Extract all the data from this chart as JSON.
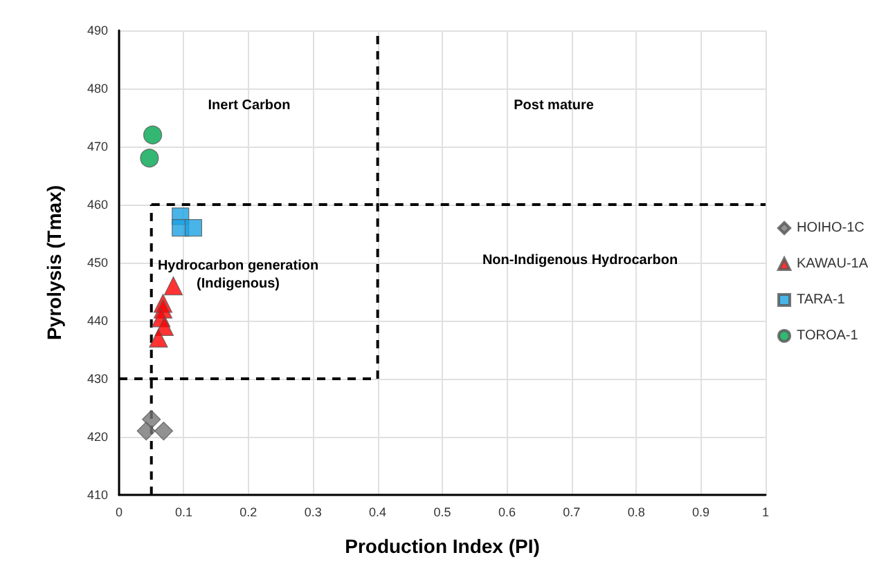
{
  "chart_data": {
    "type": "scatter",
    "xlabel": "Production Index (PI)",
    "ylabel": "Pyrolysis (Tmax)",
    "xlim": [
      0,
      1
    ],
    "xticks": [
      0,
      0.1,
      0.2,
      0.3,
      0.4,
      0.5,
      0.6,
      0.7,
      0.8,
      0.9,
      1
    ],
    "ylim": [
      410,
      490
    ],
    "yticks": [
      410,
      420,
      430,
      440,
      450,
      460,
      470,
      480,
      490
    ],
    "grid": true,
    "legend": "right",
    "series": [
      {
        "name": "HOIHO-1C",
        "color": "#767676",
        "marker": "diamond",
        "x": [
          0.05,
          0.042,
          0.069
        ],
        "values": [
          423,
          421,
          421
        ]
      },
      {
        "name": "KAWAU-1A",
        "color": "#ff0000",
        "marker": "triangle",
        "x": [
          0.084,
          0.068,
          0.068,
          0.065,
          0.07,
          0.061
        ],
        "values": [
          446,
          443,
          442,
          440.5,
          439,
          437
        ]
      },
      {
        "name": "TARA-1",
        "color": "#1ba1e2",
        "marker": "square",
        "x": [
          0.095,
          0.095,
          0.115
        ],
        "values": [
          458,
          456,
          456
        ]
      },
      {
        "name": "TOROA-1",
        "color": "#00a550",
        "marker": "circle",
        "x": [
          0.052,
          0.047
        ],
        "values": [
          472,
          468
        ]
      },
      {
        "type": "line",
        "color": "#000000",
        "line_style": "dashed",
        "marker": "none",
        "x": [
          0.05,
          0.05
        ],
        "values": [
          410,
          460
        ]
      },
      {
        "type": "line",
        "color": "#000000",
        "line_style": "dashed",
        "marker": "none",
        "x": [
          0,
          0.4
        ],
        "values": [
          430,
          430
        ]
      },
      {
        "type": "line",
        "color": "#000000",
        "line_style": "dashed",
        "marker": "none",
        "x": [
          0.4,
          0.4
        ],
        "values": [
          430,
          490
        ]
      },
      {
        "type": "line",
        "color": "#000000",
        "line_style": "dashed",
        "marker": "none",
        "x": [
          0.05,
          1
        ],
        "values": [
          460,
          460
        ]
      }
    ],
    "annotations": [
      "Inert Carbon",
      "Post mature",
      "Hydrocarbon generation\n(Indigenous)",
      "Non-Indigenous Hydrocarbon"
    ]
  }
}
